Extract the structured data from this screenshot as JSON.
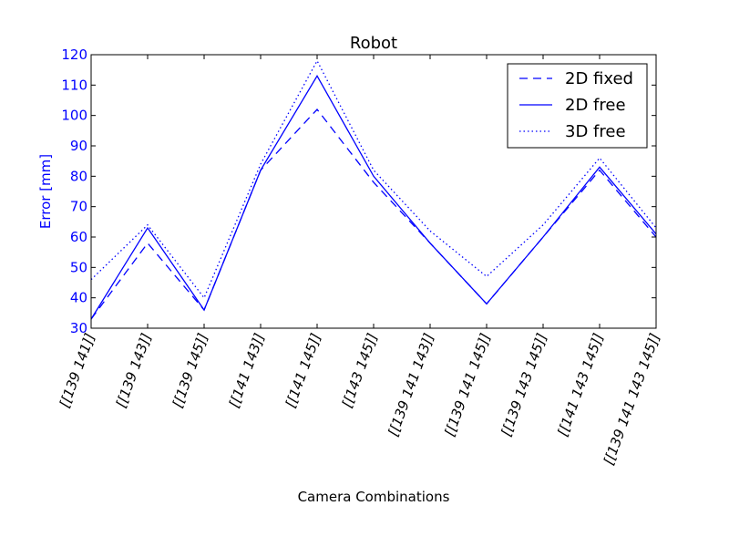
{
  "chart_data": {
    "type": "line",
    "title": "Robot",
    "xlabel": "Camera Combinations",
    "ylabel": "Error [mm]",
    "ylim": [
      30,
      120
    ],
    "yticks": [
      30,
      40,
      50,
      60,
      70,
      80,
      90,
      100,
      110,
      120
    ],
    "categories": [
      "[[139 141]]",
      "[[139 143]]",
      "[[139 145]]",
      "[[141 143]]",
      "[[141 145]]",
      "[[143 145]]",
      "[[139 141 143]]",
      "[[139 141 145]]",
      "[[139 143 145]]",
      "[[141 143 145]]",
      "[[139 141 143 145]]"
    ],
    "series": [
      {
        "name": "2D fixed",
        "style": "dashed",
        "values": [
          33,
          58,
          36,
          82,
          102,
          78,
          58,
          38,
          60,
          82,
          60
        ]
      },
      {
        "name": "2D free",
        "style": "solid",
        "values": [
          33,
          63,
          36,
          82,
          113,
          80,
          58,
          38,
          60,
          83,
          61
        ]
      },
      {
        "name": "3D free",
        "style": "dotted",
        "values": [
          46,
          64,
          40,
          84,
          118,
          82,
          62,
          47,
          64,
          86,
          63
        ]
      }
    ],
    "legend_position": "top-right",
    "grid": false,
    "line_color": "#0000ff",
    "ylabel_color": "#0000ff",
    "ytick_color": "#0000ff"
  }
}
